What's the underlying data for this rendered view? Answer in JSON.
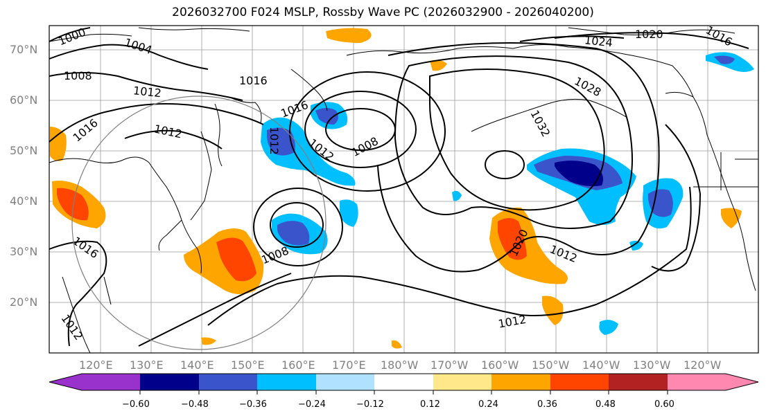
{
  "title": "2026032700 F024 MSLP, Rossby Wave PC (2026032900 - 2026040200)",
  "map": {
    "lat_labels": [
      "70°N",
      "60°N",
      "50°N",
      "40°N",
      "30°N",
      "20°N"
    ],
    "lon_labels": [
      "120°E",
      "130°E",
      "140°E",
      "150°E",
      "160°E",
      "170°E",
      "180°W",
      "170°W",
      "160°W",
      "150°W",
      "140°W",
      "130°W",
      "120°W"
    ],
    "isobar_labels": [
      "1000",
      "1004",
      "1008",
      "1012",
      "1016",
      "1016",
      "1012",
      "1016",
      "1012",
      "1008",
      "1012",
      "1024",
      "1020",
      "1016",
      "1028",
      "1032",
      "1020",
      "1012",
      "1008",
      "1016",
      "1012",
      "1012"
    ]
  },
  "colorbar": {
    "ticks": [
      "−0.60",
      "−0.48",
      "−0.36",
      "−0.24",
      "−0.12",
      "0.12",
      "0.24",
      "0.36",
      "0.48",
      "0.60"
    ],
    "colors": [
      "#9932CC",
      "#00008B",
      "#3A55CC",
      "#00BFFF",
      "#B0E2FF",
      "#FFFFFF",
      "#FFE88A",
      "#FFA500",
      "#FF4500",
      "#B22222",
      "#FF88B0"
    ]
  }
}
